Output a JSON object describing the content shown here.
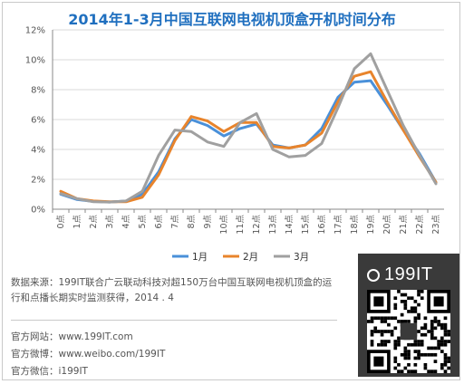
{
  "header": {
    "title": "2014年1-3月中国互联网电视机顶盒开机时间分布"
  },
  "chart_data": {
    "type": "line",
    "title": "2014年1-3月中国互联网电视机顶盒开机时间分布",
    "categories": [
      "0点",
      "1点",
      "2点",
      "3点",
      "4点",
      "5点",
      "6点",
      "7点",
      "8点",
      "9点",
      "10点",
      "11点",
      "12点",
      "13点",
      "14点",
      "15点",
      "16点",
      "17点",
      "18点",
      "19点",
      "20点",
      "21点",
      "22点",
      "23点"
    ],
    "ylim": [
      0,
      12
    ],
    "yticks": [
      "0%",
      "2%",
      "4%",
      "6%",
      "8%",
      "10%",
      "12%"
    ],
    "grid": "horizontal",
    "legend_position": "bottom",
    "series": [
      {
        "name": "1月",
        "color": "#4a90d9",
        "values": [
          1.0,
          0.65,
          0.52,
          0.48,
          0.55,
          1.0,
          2.5,
          4.7,
          6.0,
          5.6,
          4.9,
          5.4,
          5.7,
          4.3,
          4.1,
          4.3,
          5.4,
          7.5,
          8.5,
          8.6,
          7.0,
          5.3,
          3.7,
          1.8
        ]
      },
      {
        "name": "2月",
        "color": "#e8842c",
        "values": [
          1.2,
          0.7,
          0.55,
          0.5,
          0.5,
          0.8,
          2.3,
          4.6,
          6.2,
          5.9,
          5.2,
          5.8,
          5.8,
          4.2,
          4.1,
          4.3,
          5.1,
          7.2,
          8.9,
          9.2,
          7.2,
          5.3,
          3.5,
          1.8
        ]
      },
      {
        "name": "3月",
        "color": "#a0a0a0",
        "values": [
          1.05,
          0.7,
          0.5,
          0.48,
          0.55,
          1.2,
          3.6,
          5.3,
          5.2,
          4.5,
          4.2,
          5.8,
          6.4,
          4.0,
          3.5,
          3.6,
          4.4,
          6.8,
          9.4,
          10.4,
          8.0,
          5.6,
          3.6,
          1.7
        ]
      }
    ]
  },
  "footer": {
    "source": "数据来源：199IT联合广云联动科技对超150万台中国互联网电视机顶盒的运行和点播长期实时监测获得，2014 . 4",
    "website": "官方网站：www.199IT.com",
    "weibo": "官方微博：www.weibo.com/199IT",
    "wechat": "官方微信：i199IT"
  },
  "brand": {
    "logo_text": "199IT",
    "logo_icon": "199it-logo-mark"
  }
}
